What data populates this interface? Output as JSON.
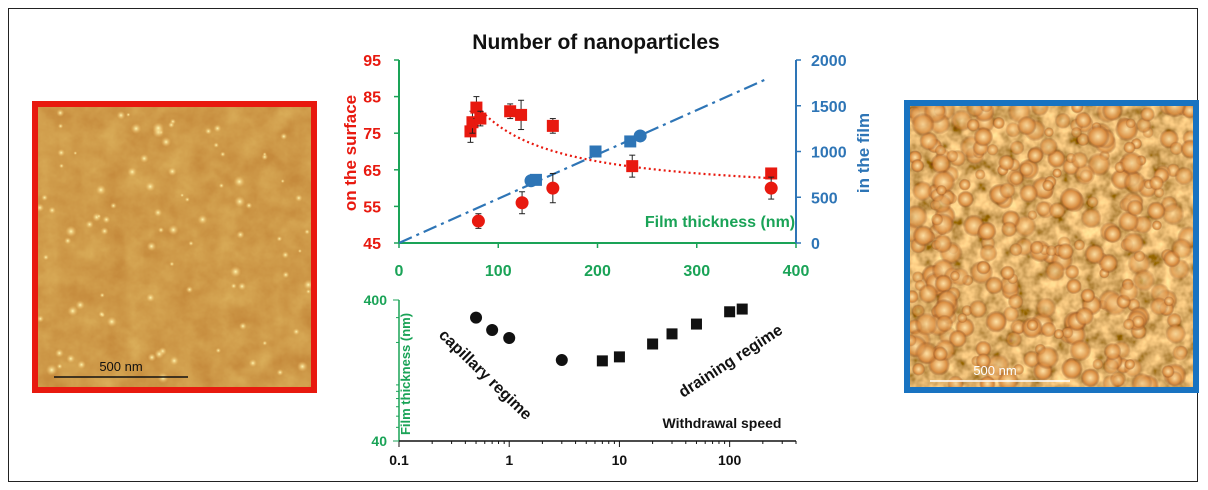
{
  "colors": {
    "red": "#e8190f",
    "blue": "#2e75b6",
    "green": "#1aa357",
    "black": "#111111",
    "frame": "#222222"
  },
  "afm_left": {
    "scale_label": "500 nm",
    "border_color": "#e8190f"
  },
  "afm_right": {
    "scale_label": "500 nm",
    "border_color": "#1873c1"
  },
  "chart_data": [
    {
      "type": "scatter",
      "title": "Number of nanoparticles",
      "xlabel": "Film thickness (nm)",
      "ylabel_left": "on the surface",
      "ylabel_right": "in the film",
      "xlim": [
        0,
        400
      ],
      "ylim_left": [
        45,
        95
      ],
      "ylim_right": [
        0,
        2000
      ],
      "x_ticks": [
        "0",
        "100",
        "200",
        "300",
        "400"
      ],
      "y_left_ticks": [
        "45",
        "55",
        "65",
        "75",
        "85",
        "95"
      ],
      "y_right_ticks": [
        "0",
        "500",
        "1000",
        "1500",
        "2000"
      ],
      "series": [
        {
          "axis": "left",
          "marker": "square",
          "color": "#e8190f",
          "x": [
            72,
            74,
            78,
            82,
            112,
            123,
            155,
            235,
            375
          ],
          "y": [
            75.5,
            78,
            82,
            79,
            81,
            80,
            77,
            66,
            64
          ],
          "err": [
            3,
            3,
            3,
            2,
            2,
            4,
            2,
            3,
            0
          ]
        },
        {
          "axis": "left",
          "marker": "circle",
          "color": "#e8190f",
          "x": [
            80,
            124,
            155,
            375
          ],
          "y": [
            51,
            56,
            60,
            60
          ],
          "err": [
            2,
            3,
            4,
            3
          ]
        },
        {
          "axis": "right",
          "marker": "square",
          "color": "#2e75b6",
          "x": [
            138,
            198,
            233
          ],
          "y": [
            690,
            1000,
            1110
          ]
        },
        {
          "axis": "right",
          "marker": "circle",
          "color": "#2e75b6",
          "x": [
            133,
            243
          ],
          "y": [
            680,
            1170
          ]
        }
      ],
      "fits": [
        {
          "name": "",
          "axis": "right",
          "style": "dashed",
          "color": "#2e75b6",
          "x": [
            0,
            372
          ],
          "y": [
            0,
            1800
          ]
        },
        {
          "name": "",
          "axis": "left",
          "style": "dotted",
          "color": "#e8190f",
          "model": "a+b/x",
          "x_from": 80,
          "x_to": 375
        }
      ]
    },
    {
      "type": "scatter",
      "xlabel": "Withdrawal speed",
      "ylabel": "Film thickness (nm)",
      "xscale": "log",
      "yscale": "log",
      "xlim": [
        0.1,
        400
      ],
      "ylim": [
        40,
        400
      ],
      "x_ticks": [
        "0.1",
        "1",
        "10",
        "100"
      ],
      "y_ticks": [
        "40",
        "400"
      ],
      "annotations": [
        "capillary regime",
        "draining regime"
      ],
      "series": [
        {
          "name": "",
          "marker": "circle",
          "color": "#111111",
          "x": [
            0.5,
            0.7,
            1,
            3
          ],
          "y": [
            300,
            245,
            215,
            150
          ]
        },
        {
          "name": "",
          "marker": "square",
          "color": "#111111",
          "x": [
            7,
            10,
            20,
            30,
            50,
            100,
            130
          ],
          "y": [
            148,
            158,
            195,
            230,
            270,
            330,
            345
          ]
        }
      ]
    }
  ]
}
